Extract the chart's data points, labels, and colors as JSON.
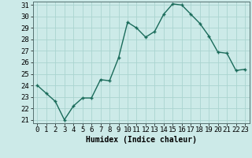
{
  "x": [
    0,
    1,
    2,
    3,
    4,
    5,
    6,
    7,
    8,
    9,
    10,
    11,
    12,
    13,
    14,
    15,
    16,
    17,
    18,
    19,
    20,
    21,
    22,
    23
  ],
  "y": [
    24.0,
    23.3,
    22.6,
    21.0,
    22.2,
    22.9,
    22.9,
    24.5,
    24.4,
    26.4,
    29.5,
    29.0,
    28.2,
    28.7,
    30.2,
    31.1,
    31.0,
    30.2,
    29.4,
    28.3,
    26.9,
    26.8,
    25.3,
    25.4
  ],
  "xlabel": "Humidex (Indice chaleur)",
  "ylim_min": 20.7,
  "ylim_max": 31.3,
  "xlim_min": -0.5,
  "xlim_max": 23.5,
  "yticks": [
    21,
    22,
    23,
    24,
    25,
    26,
    27,
    28,
    29,
    30,
    31
  ],
  "xticks": [
    0,
    1,
    2,
    3,
    4,
    5,
    6,
    7,
    8,
    9,
    10,
    11,
    12,
    13,
    14,
    15,
    16,
    17,
    18,
    19,
    20,
    21,
    22,
    23
  ],
  "line_color": "#1a6b5a",
  "marker_color": "#1a6b5a",
  "bg_color": "#cceae8",
  "grid_color": "#aad4d0",
  "label_fontsize": 7,
  "tick_fontsize": 6.5
}
